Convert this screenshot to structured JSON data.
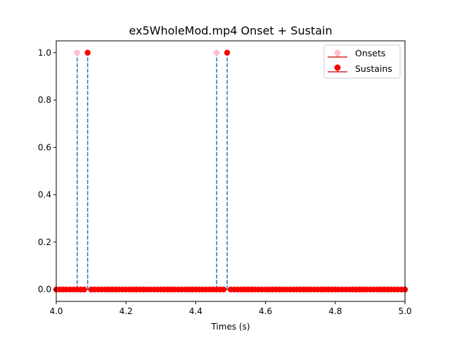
{
  "chart_data": {
    "type": "scatter",
    "title": "ex5WholeMod.mp4 Onset + Sustain",
    "xlabel": "Times (s)",
    "ylabel": "",
    "xlim": [
      4.0,
      5.0
    ],
    "ylim": [
      -0.05,
      1.05
    ],
    "xticks": [
      4.0,
      4.2,
      4.4,
      4.6,
      4.8,
      5.0
    ],
    "xtick_labels": [
      "4.0",
      "4.2",
      "4.4",
      "4.6",
      "4.8",
      "5.0"
    ],
    "yticks": [
      0.0,
      0.2,
      0.4,
      0.6,
      0.8,
      1.0
    ],
    "ytick_labels": [
      "0.0",
      "0.2",
      "0.4",
      "0.6",
      "0.8",
      "1.0"
    ],
    "grid": false,
    "legend_position": "top-right",
    "series": [
      {
        "name": "Onsets",
        "style": "stem",
        "marker_color": "#ffc0cb",
        "stem_color": "#1f77b4",
        "baseline_color": "#d62728",
        "x": [
          4.06,
          4.46
        ],
        "y": [
          1,
          1
        ]
      },
      {
        "name": "Sustains",
        "style": "stem",
        "marker_color": "#ff0000",
        "stem_color": "#1f77b4",
        "baseline_color": "#d62728",
        "x_start": 4.0,
        "x_step": 0.01,
        "count": 101,
        "ones_at": [
          4.09,
          4.49
        ],
        "y_default": 0
      }
    ]
  }
}
